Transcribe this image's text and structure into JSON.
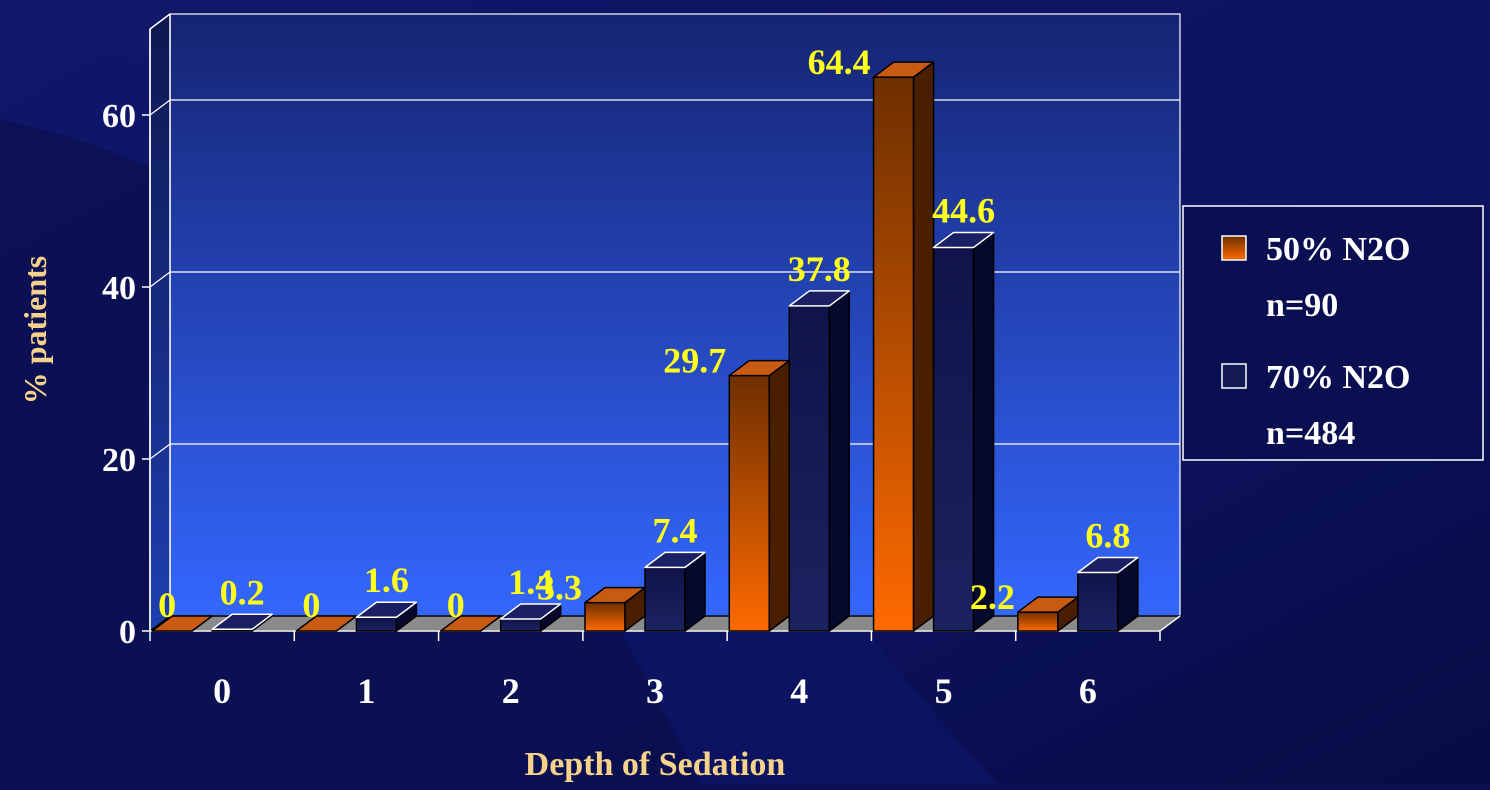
{
  "chart_data": {
    "type": "bar",
    "title": "",
    "xlabel": "Depth of Sedation",
    "ylabel": "% patients",
    "categories": [
      "0",
      "1",
      "2",
      "3",
      "4",
      "5",
      "6"
    ],
    "ylim": [
      0,
      60
    ],
    "yticks": [
      "0",
      "20",
      "40",
      "60"
    ],
    "grid": true,
    "legend_position": "right",
    "series": [
      {
        "name": "50% N2O",
        "name_n": "n=90",
        "color": "#ff6a00",
        "values": [
          0,
          0,
          0,
          3.3,
          29.7,
          64.4,
          2.2
        ],
        "labels": [
          "0",
          "0",
          "0",
          "3.3",
          "29.7",
          "64.4",
          "2.2"
        ]
      },
      {
        "name": "70% N2O",
        "name_n": "n=484",
        "color": "#141a55",
        "values": [
          0.2,
          1.6,
          1.4,
          7.4,
          37.8,
          44.6,
          6.8
        ],
        "labels": [
          "0.2",
          "1.6",
          "1.4",
          "7.4",
          "37.8",
          "44.6",
          "6.8"
        ]
      }
    ],
    "colors": {
      "axis_text": "#ffffff",
      "axis_title": "#f7d28a",
      "data_label": "#ffff1a"
    }
  }
}
